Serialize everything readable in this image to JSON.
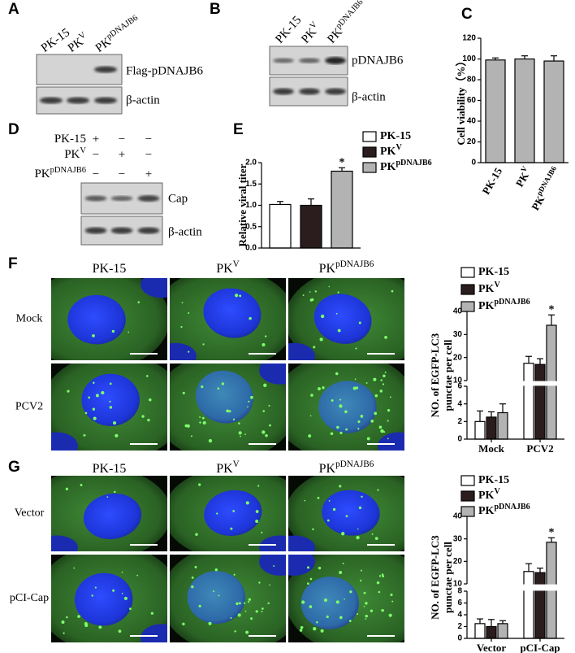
{
  "panel_labels": [
    "A",
    "B",
    "C",
    "D",
    "E",
    "F",
    "G"
  ],
  "blot_a": {
    "lanes": [
      {
        "text": "PK-15"
      },
      {
        "text": "PK",
        "sup": "V"
      },
      {
        "text": "PK",
        "sup": "pDNAJB6"
      }
    ],
    "bands": [
      "Flag-pDNAJB6",
      "β-actin"
    ]
  },
  "blot_b": {
    "lanes": [
      {
        "text": "PK-15"
      },
      {
        "text": "PK",
        "sup": "V"
      },
      {
        "text": "PK",
        "sup": "pDNAJB6"
      }
    ],
    "bands": [
      "pDNAJB6",
      "β-actin"
    ]
  },
  "blot_d": {
    "rows": [
      {
        "text": "PK-15",
        "signs": [
          "+",
          "−",
          "−"
        ]
      },
      {
        "text": "PK",
        "sup": "V",
        "signs": [
          "−",
          "+",
          "−"
        ]
      },
      {
        "text": "PK",
        "sup": "pDNAJB6",
        "signs": [
          "−",
          "−",
          "+"
        ]
      }
    ],
    "bands": [
      "Cap",
      "β-actin"
    ]
  },
  "images_f": {
    "columns": [
      {
        "text": "PK-15"
      },
      {
        "text": "PK",
        "sup": "V"
      },
      {
        "text": "PK",
        "sup": "pDNAJB6"
      }
    ],
    "rows": [
      "Mock",
      "PCV2"
    ]
  },
  "images_g": {
    "columns": [
      {
        "text": "PK-15"
      },
      {
        "text": "PK",
        "sup": "V"
      },
      {
        "text": "PK",
        "sup": "pDNAJB6"
      }
    ],
    "rows": [
      "Vector",
      "pCI-Cap"
    ]
  },
  "chart_data": [
    {
      "type": "bar",
      "ylabel": "Cell viability（%）",
      "categories": [
        "PK-15",
        "PK",
        "PK"
      ],
      "category_sups": [
        null,
        "V",
        "pDNAJB6"
      ],
      "values": [
        99,
        100,
        98
      ],
      "errors": [
        2,
        3,
        5
      ],
      "color": "#b3b3b3",
      "ylim": [
        0,
        120
      ],
      "yticks": [
        0,
        20,
        40,
        60,
        80,
        100,
        120
      ]
    },
    {
      "type": "bar",
      "ylabel": "Relative viral titer",
      "categories": [
        null
      ],
      "series": [
        {
          "name": "PK-15",
          "color": "#ffffff",
          "values": [
            1.02
          ],
          "errors": [
            0.07
          ]
        },
        {
          "name": "PK",
          "sup": "V",
          "color": "#2b1d1d",
          "values": [
            1.0
          ],
          "errors": [
            0.15
          ]
        },
        {
          "name": "PK",
          "sup": "pDNAJB6",
          "color": "#b3b3b3",
          "values": [
            1.8
          ],
          "errors": [
            0.08
          ],
          "annotations": [
            "*"
          ]
        }
      ],
      "ylim": [
        0,
        2
      ],
      "yticks": [
        {
          "value": 0,
          "label": "0.0"
        },
        {
          "value": 0.5,
          "label": "0.5"
        },
        {
          "value": 1,
          "label": "1.0"
        },
        {
          "value": 1.5,
          "label": "1.5"
        },
        {
          "value": 2,
          "label": "2.0"
        }
      ]
    },
    {
      "type": "bar",
      "ylabel": [
        "NO. of EGFP-LC3",
        "punctae per cell"
      ],
      "categories": [
        "Mock",
        "PCV2"
      ],
      "series": [
        {
          "name": "PK-15",
          "color": "#ffffff",
          "values": [
            2,
            17.5
          ],
          "errors": [
            1.2,
            3
          ],
          "annotations": [
            null,
            null
          ]
        },
        {
          "name": "PK",
          "sup": "V",
          "color": "#2b1d1d",
          "values": [
            2.5,
            17
          ],
          "errors": [
            0.6,
            2.5
          ],
          "annotations": [
            null,
            null
          ]
        },
        {
          "name": "PK",
          "sup": "pDNAJB6",
          "color": "#b3b3b3",
          "values": [
            3,
            34
          ],
          "errors": [
            1,
            4.5
          ],
          "annotations": [
            null,
            "*"
          ]
        }
      ],
      "ylim": [
        0,
        40
      ],
      "ybreak": [
        6,
        10
      ],
      "yticks": [
        0,
        2,
        4,
        6,
        10,
        20,
        30,
        40
      ]
    },
    {
      "type": "bar",
      "ylabel": [
        "NO. of EGFP-LC3",
        "punctae per cell"
      ],
      "categories": [
        "Vector",
        "pCI-Cap"
      ],
      "series": [
        {
          "name": "PK-15",
          "color": "#ffffff",
          "values": [
            2.5,
            15.5
          ],
          "errors": [
            0.8,
            3.5
          ],
          "annotations": [
            null,
            null
          ]
        },
        {
          "name": "PK",
          "sup": "V",
          "color": "#2b1d1d",
          "values": [
            2,
            15
          ],
          "errors": [
            1.2,
            2
          ],
          "annotations": [
            null,
            null
          ]
        },
        {
          "name": "PK",
          "sup": "pDNAJB6",
          "color": "#b3b3b3",
          "values": [
            2.5,
            28.5
          ],
          "errors": [
            0.5,
            2
          ],
          "annotations": [
            null,
            "*"
          ]
        }
      ],
      "ylim": [
        0,
        40
      ],
      "ybreak": [
        8,
        10
      ],
      "yticks": [
        0,
        2,
        4,
        6,
        8,
        10,
        20,
        30,
        40
      ]
    }
  ]
}
